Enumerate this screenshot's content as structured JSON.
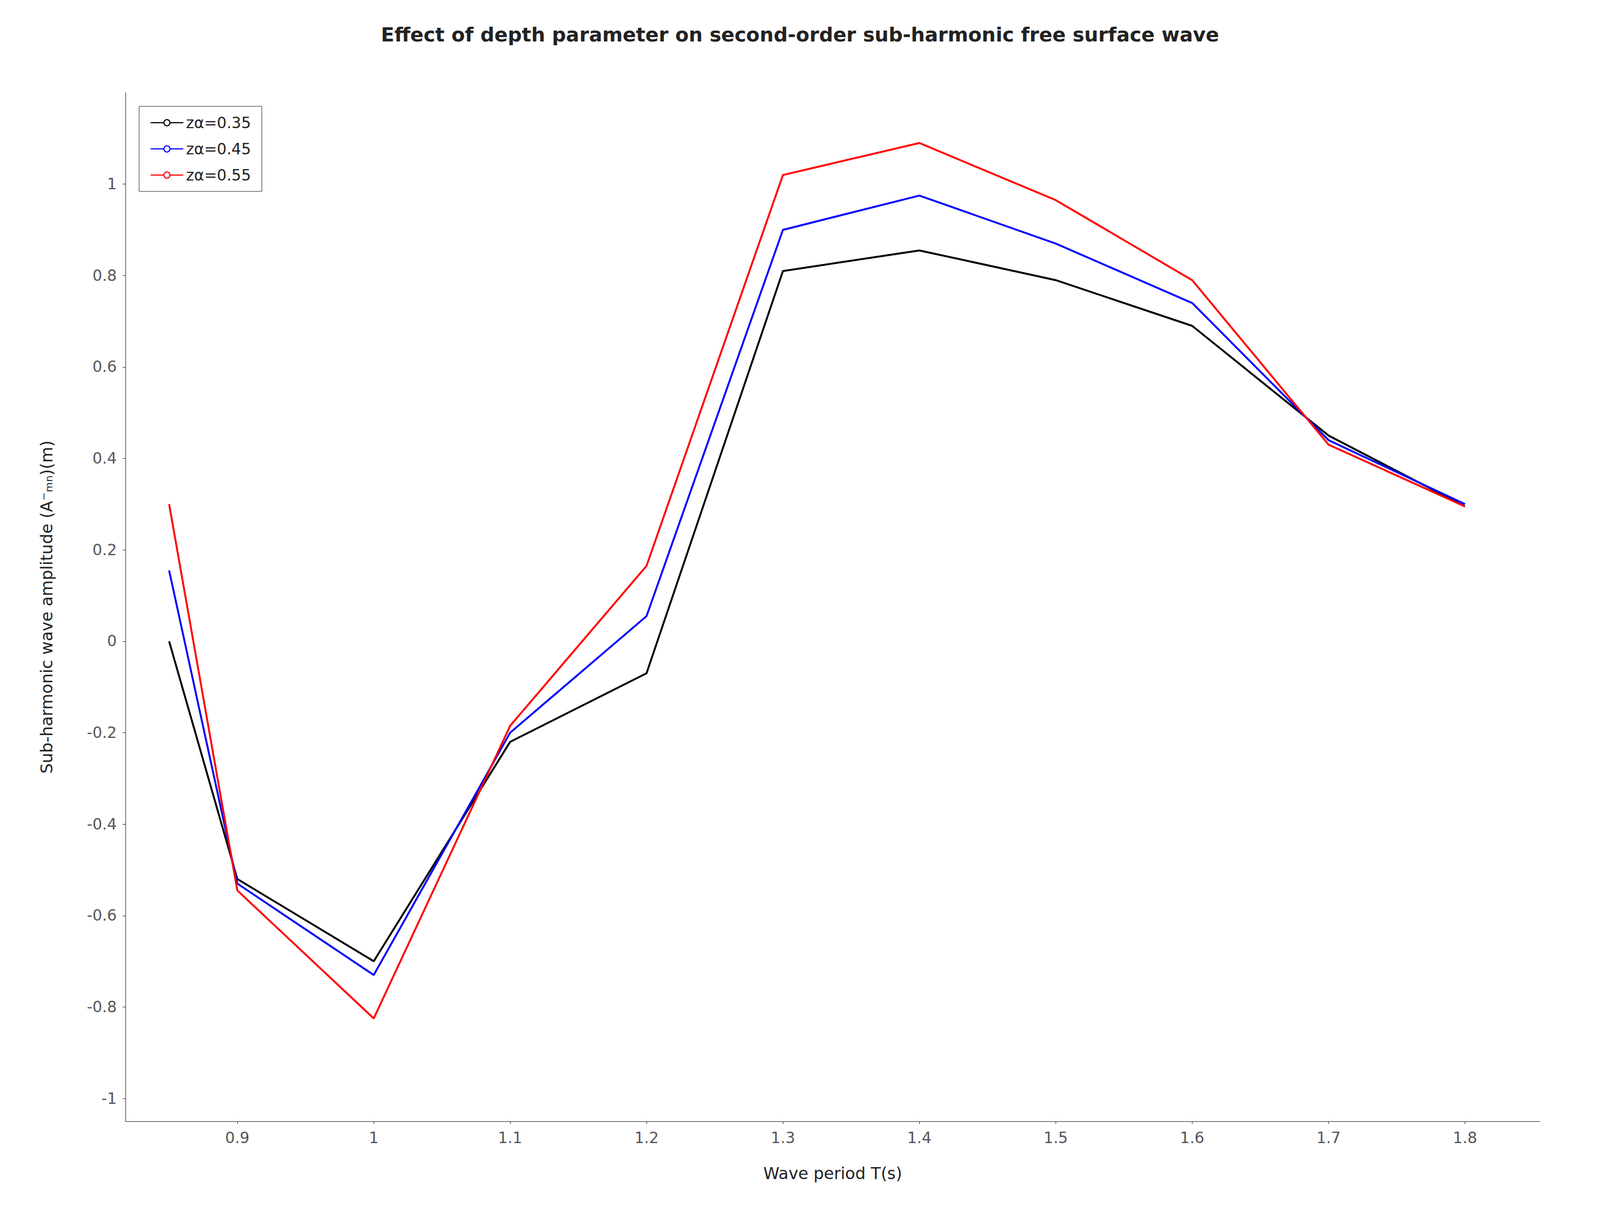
{
  "chart_data": {
    "type": "line",
    "title": "Effect of depth parameter on second-order sub-harmonic free surface wave",
    "xlabel": "Wave period T(s)",
    "ylabel": "Sub-harmonic wave amplitude (A⁻ₘₙ)(m)",
    "x": [
      0.85,
      0.9,
      1.0,
      1.1,
      1.2,
      1.3,
      1.4,
      1.5,
      1.6,
      1.7,
      1.8
    ],
    "series": [
      {
        "name": "zα=0.35",
        "color": "#000000",
        "values": [
          0.0,
          -0.52,
          -0.7,
          -0.22,
          -0.07,
          0.81,
          0.855,
          0.79,
          0.69,
          0.45,
          0.295
        ]
      },
      {
        "name": "zα=0.45",
        "color": "#0000ff",
        "values": [
          0.155,
          -0.53,
          -0.73,
          -0.2,
          0.055,
          0.9,
          0.975,
          0.87,
          0.74,
          0.44,
          0.3
        ]
      },
      {
        "name": "zα=0.55",
        "color": "#ff0000",
        "values": [
          0.3,
          -0.545,
          -0.825,
          -0.185,
          0.165,
          1.02,
          1.09,
          0.965,
          0.79,
          0.43,
          0.295
        ]
      }
    ],
    "xlim": [
      0.818,
      1.855
    ],
    "ylim": [
      -1.05,
      1.2
    ],
    "xticks": [
      0.9,
      1.0,
      1.1,
      1.2,
      1.3,
      1.4,
      1.5,
      1.6,
      1.7,
      1.8
    ],
    "yticks": [
      -1,
      -0.8,
      -0.6,
      -0.4,
      -0.2,
      0,
      0.2,
      0.4,
      0.6,
      0.8,
      1
    ],
    "grid": false,
    "legend": "upper left"
  }
}
